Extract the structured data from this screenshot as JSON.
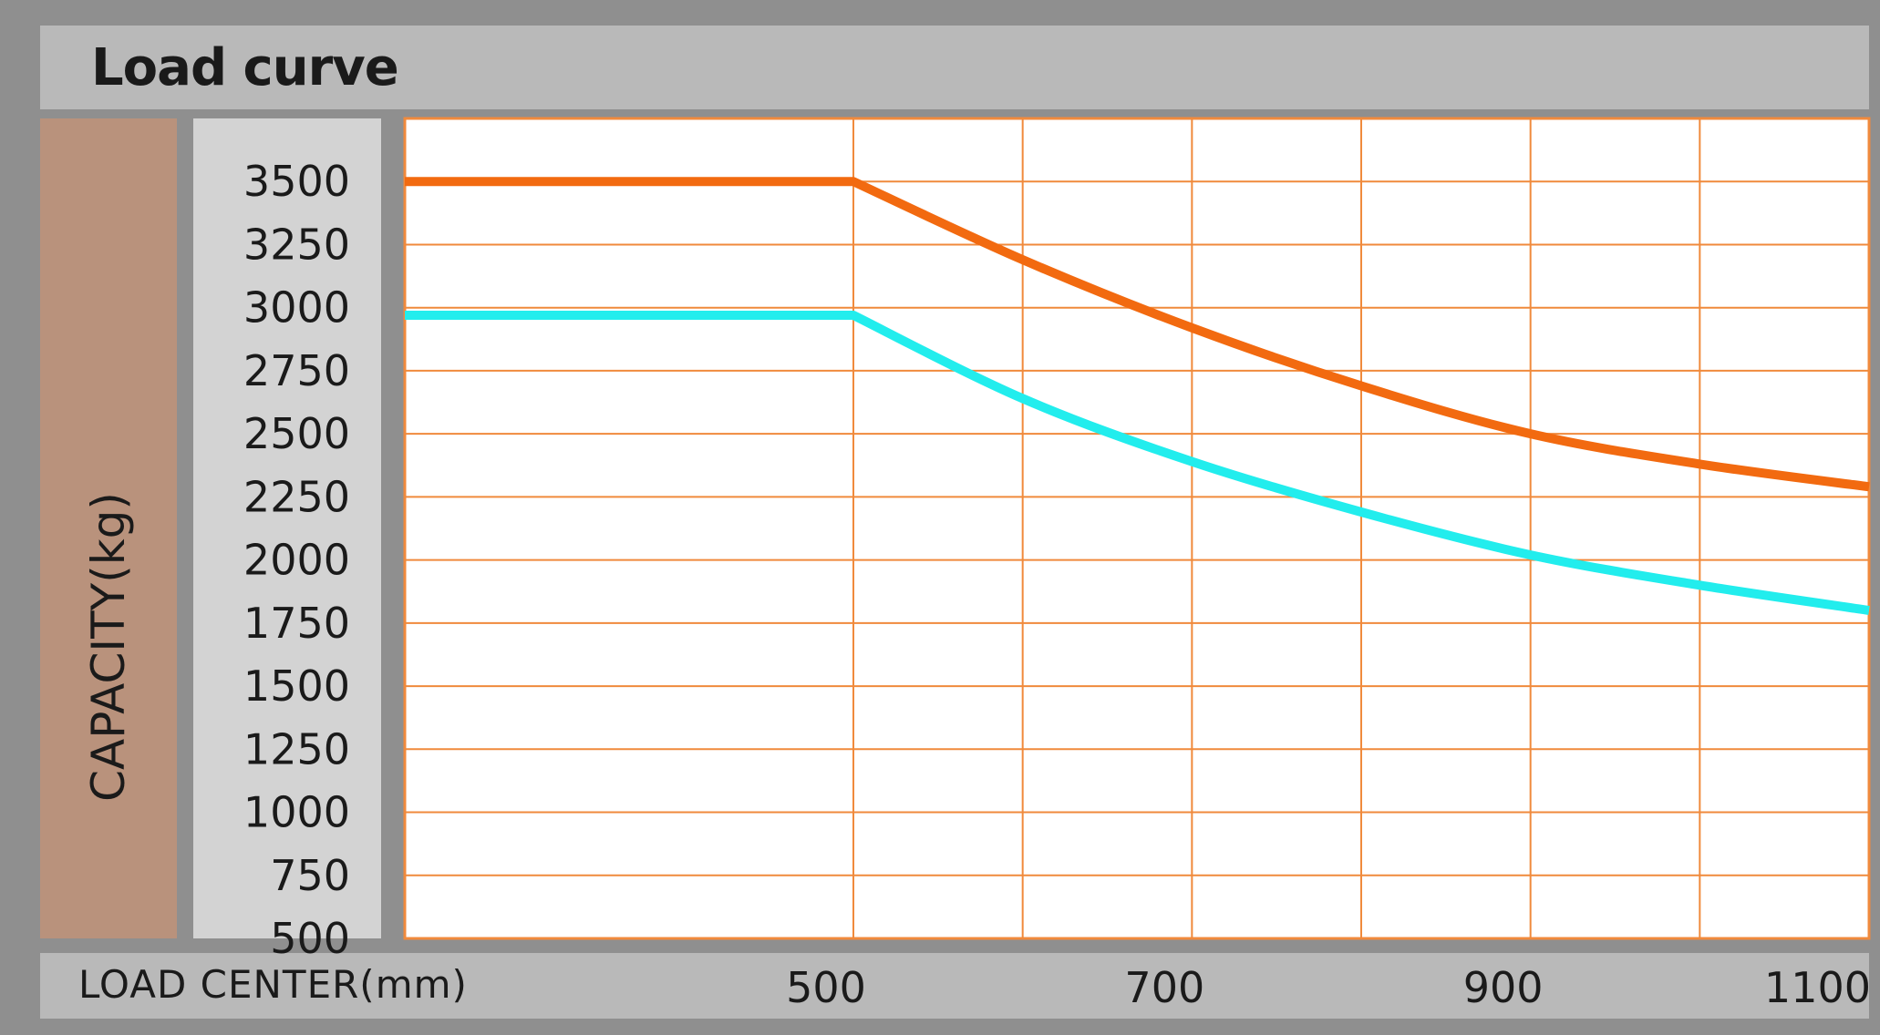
{
  "title": "Load curve",
  "chart_data": {
    "type": "line",
    "title": "Load curve",
    "xlabel": "LOAD CENTER(mm)",
    "ylabel": "CAPACITY(kg)",
    "xlim": [
      235,
      1100
    ],
    "ylim": [
      500,
      3750
    ],
    "x_ticks": [
      500,
      700,
      900,
      1100
    ],
    "y_ticks": [
      500,
      750,
      1000,
      1250,
      1500,
      1750,
      2000,
      2250,
      2500,
      2750,
      3000,
      3250,
      3500
    ],
    "grid": true,
    "colors": {
      "grid": "#f08a3c",
      "series_upper": "#f26a10",
      "series_lower": "#22eded"
    },
    "series": [
      {
        "x": [
          235,
          500,
          600,
          700,
          800,
          900,
          1000,
          1100
        ],
        "values": [
          3500,
          3500,
          3190,
          2920,
          2690,
          2500,
          2380,
          2290
        ]
      },
      {
        "x": [
          235,
          500,
          600,
          700,
          800,
          900,
          1000,
          1100
        ],
        "values": [
          2970,
          2970,
          2640,
          2390,
          2190,
          2020,
          1900,
          1800
        ]
      }
    ]
  }
}
